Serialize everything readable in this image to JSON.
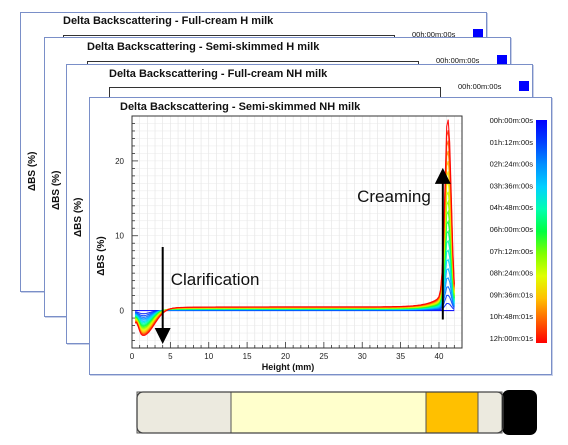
{
  "panels": [
    {
      "title": "Delta Backscattering - Full-cream H milk",
      "ylabel": "ΔBS (%)",
      "legend_first": "00h:00m:00s",
      "ytick": "20"
    },
    {
      "title": "Delta Backscattering - Semi-skimmed  H milk",
      "ylabel": "ΔBS (%)",
      "legend_first": "00h:00m:00s"
    },
    {
      "title": "Delta Backscattering - Full-cream NH milk",
      "ylabel": "ΔBS (%)",
      "legend_first": "00h:00m:00s"
    }
  ],
  "chart_data": {
    "type": "line",
    "title": "Delta Backscattering - Semi-skimmed NH milk",
    "xlabel": "Height (mm)",
    "ylabel": "ΔBS (%)",
    "xlim": [
      0,
      43
    ],
    "ylim": [
      -5,
      26
    ],
    "xticks": [
      0,
      5,
      10,
      15,
      20,
      25,
      30,
      35,
      40
    ],
    "yticks": [
      0,
      10,
      20
    ],
    "grid": true,
    "legend_position": "right",
    "time_labels": [
      "00h:00m:00s",
      "01h:12m:00s",
      "02h:24m:00s",
      "03h:36m:00s",
      "04h:48m:00s",
      "06h:00m:00s",
      "07h:12m:00s",
      "08h:24m:00s",
      "09h:36m:01s",
      "10h:48m:01s",
      "12h:00m:01s"
    ],
    "colors": [
      "#0000ff",
      "#0040ff",
      "#0090ff",
      "#00d0ff",
      "#00ffb0",
      "#00ff40",
      "#80ff00",
      "#e0ff00",
      "#ffc000",
      "#ff6000",
      "#ff0000"
    ],
    "curve_model": {
      "clarification_minimum": -3.5,
      "clarification_position_mm": 1.5,
      "creaming_peak": 25,
      "creaming_peak_position_mm": 41.2,
      "plateau_level": 0.5
    },
    "annotations": [
      {
        "text": "Creaming",
        "direction": "up",
        "x_mm": 40.5
      },
      {
        "text": "Clarification",
        "direction": "down",
        "x_mm": 4
      }
    ]
  },
  "tube": {
    "segments": [
      {
        "color": "#eceadf"
      },
      {
        "color": "#ffffcc"
      },
      {
        "color": "#ffc000"
      },
      {
        "color": "#eceadf"
      },
      {
        "color": "#000000"
      }
    ]
  }
}
